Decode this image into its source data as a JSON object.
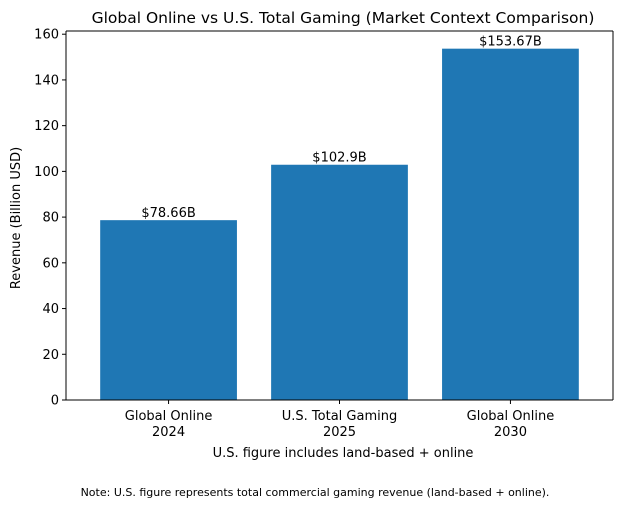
{
  "chart_data": {
    "type": "bar",
    "title": "Global Online vs U.S. Total Gaming (Market Context Comparison)",
    "xlabel": "U.S. figure includes land-based + online",
    "ylabel": "Revenue (Billion USD)",
    "categories": [
      [
        "Global Online",
        "2024"
      ],
      [
        "U.S. Total Gaming",
        "2025"
      ],
      [
        "Global Online",
        "2030"
      ]
    ],
    "values": [
      78.66,
      102.9,
      153.67
    ],
    "value_labels": [
      "$78.66B",
      "$102.9B",
      "$153.67B"
    ],
    "ylim": [
      0,
      161.4
    ],
    "yticks": [
      0,
      20,
      40,
      60,
      80,
      100,
      120,
      140,
      160
    ],
    "bar_color": "#1f77b4",
    "grid": false,
    "legend": "none"
  },
  "footnote": "Note: U.S. figure represents total commercial gaming revenue (land-based + online)."
}
